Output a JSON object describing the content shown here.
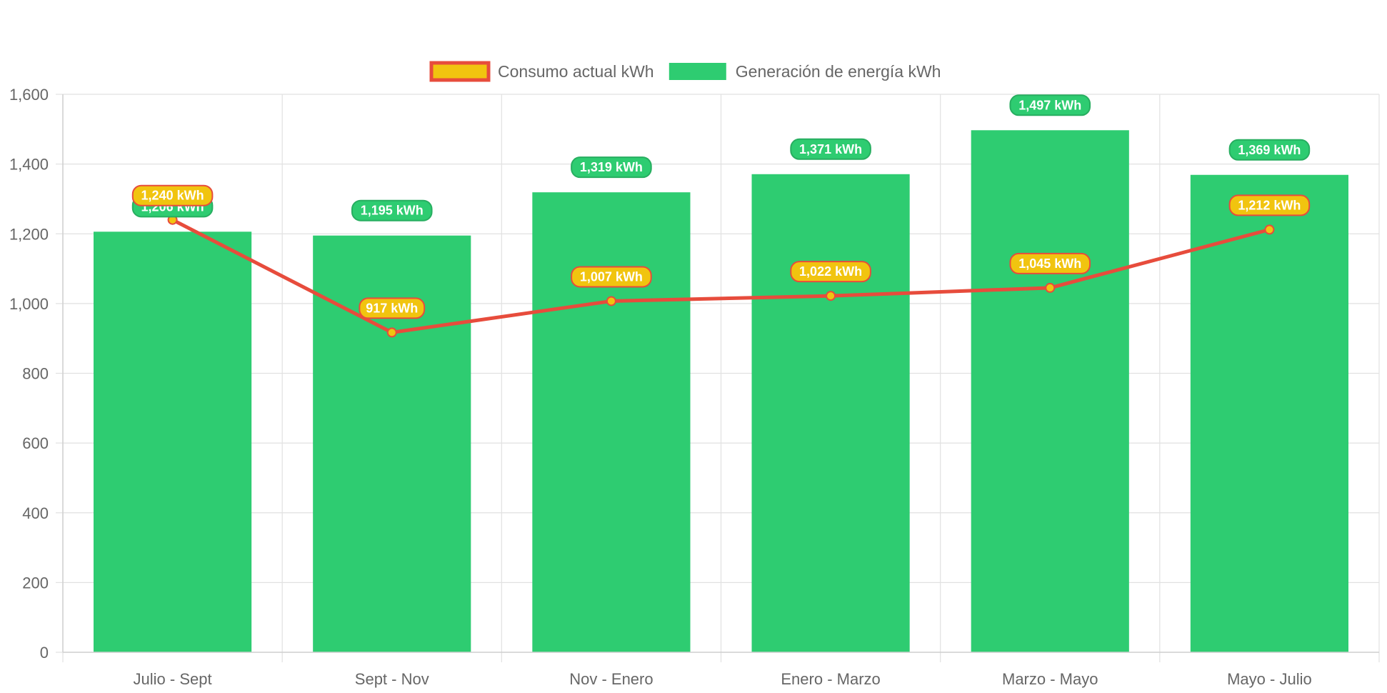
{
  "chart_data": {
    "type": "bar",
    "categories": [
      "Julio - Sept",
      "Sept - Nov",
      "Nov - Enero",
      "Enero - Marzo",
      "Marzo - Mayo",
      "Mayo - Julio"
    ],
    "series": [
      {
        "name": "Generación de energía kWh",
        "type": "bar",
        "values": [
          1206,
          1195,
          1319,
          1371,
          1497,
          1369
        ],
        "labels": [
          "1,206 kWh",
          "1,195 kWh",
          "1,319 kWh",
          "1,371 kWh",
          "1,497 kWh",
          "1,369 kWh"
        ],
        "color": "#2ecc71",
        "label_border": "#27ae60"
      },
      {
        "name": "Consumo actual kWh",
        "type": "line",
        "values": [
          1240,
          917,
          1007,
          1022,
          1045,
          1212
        ],
        "labels": [
          "1,240 kWh",
          "917 kWh",
          "1,007 kWh",
          "1,022 kWh",
          "1,045 kWh",
          "1,212 kWh"
        ],
        "color": "#f1c40f",
        "border_color": "#e74c3c"
      }
    ],
    "legend": {
      "position": "top",
      "items": [
        "Consumo actual kWh",
        "Generación de energía kWh"
      ]
    },
    "y_ticks": [
      "0",
      "200",
      "400",
      "600",
      "800",
      "1,000",
      "1,200",
      "1,400",
      "1,600"
    ],
    "ylim": [
      0,
      1600
    ],
    "grid": true,
    "title": "",
    "xlabel": "",
    "ylabel": ""
  }
}
